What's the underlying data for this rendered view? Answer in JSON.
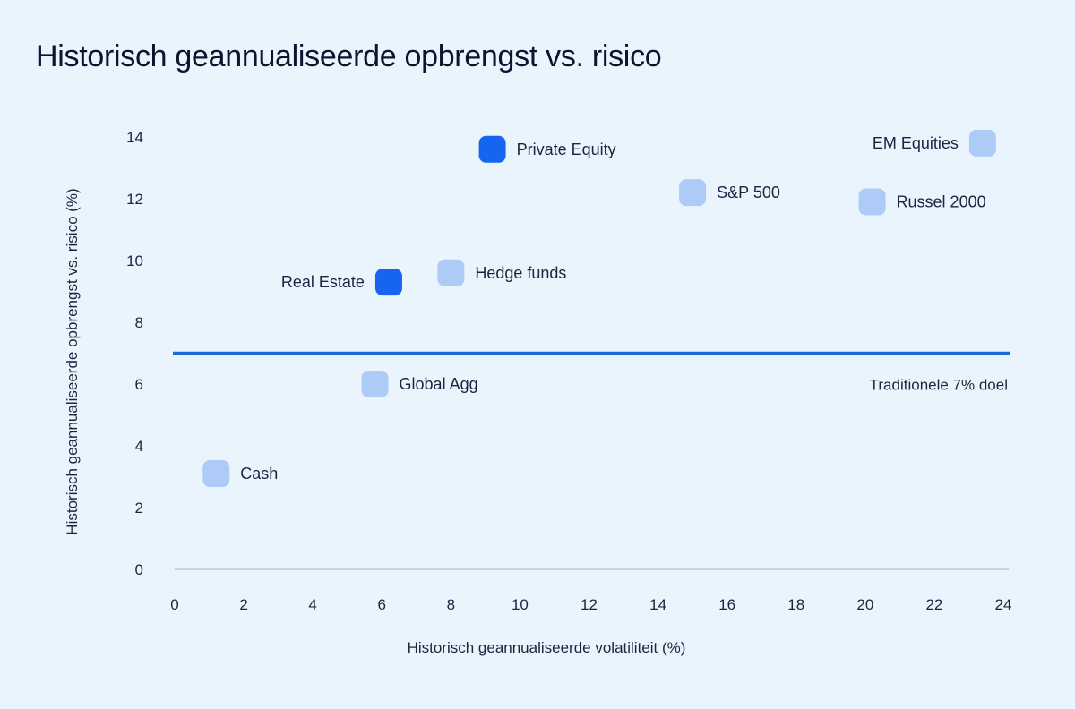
{
  "chart_data": {
    "type": "scatter",
    "title": "Historisch geannualiseerde opbrengst vs. risico",
    "xlabel": "Historisch geannualiseerde volatiliteit (%)",
    "ylabel": "Historisch geannualiseerde opbrengst vs. risico (%)",
    "xlim": [
      0,
      24
    ],
    "ylim": [
      0,
      14
    ],
    "xticks": [
      0,
      2,
      4,
      6,
      8,
      10,
      12,
      14,
      16,
      18,
      20,
      22,
      24
    ],
    "yticks": [
      0,
      2,
      4,
      6,
      8,
      10,
      12,
      14
    ],
    "grid": false,
    "points": [
      {
        "label": "Private Equity",
        "x": 9.2,
        "y": 13.6,
        "color": "#1565f0",
        "label_side": "right"
      },
      {
        "label": "EM Equities",
        "x": 23.4,
        "y": 13.8,
        "color": "#aecbf8",
        "label_side": "left"
      },
      {
        "label": "S&P 500",
        "x": 15.0,
        "y": 12.2,
        "color": "#aecbf8",
        "label_side": "right"
      },
      {
        "label": "Russel 2000",
        "x": 20.2,
        "y": 11.9,
        "color": "#aecbf8",
        "label_side": "right"
      },
      {
        "label": "Real Estate",
        "x": 6.2,
        "y": 9.3,
        "color": "#1565f0",
        "label_side": "left"
      },
      {
        "label": "Hedge funds",
        "x": 8.0,
        "y": 9.6,
        "color": "#aecbf8",
        "label_side": "right"
      },
      {
        "label": "Global Agg",
        "x": 5.8,
        "y": 6.0,
        "color": "#aecbf8",
        "label_side": "right"
      },
      {
        "label": "Cash",
        "x": 1.2,
        "y": 3.1,
        "color": "#aecbf8",
        "label_side": "right"
      }
    ],
    "reference_line": {
      "y": 7,
      "label": "Traditionele 7% doel",
      "color": "#1a6ad6"
    }
  }
}
